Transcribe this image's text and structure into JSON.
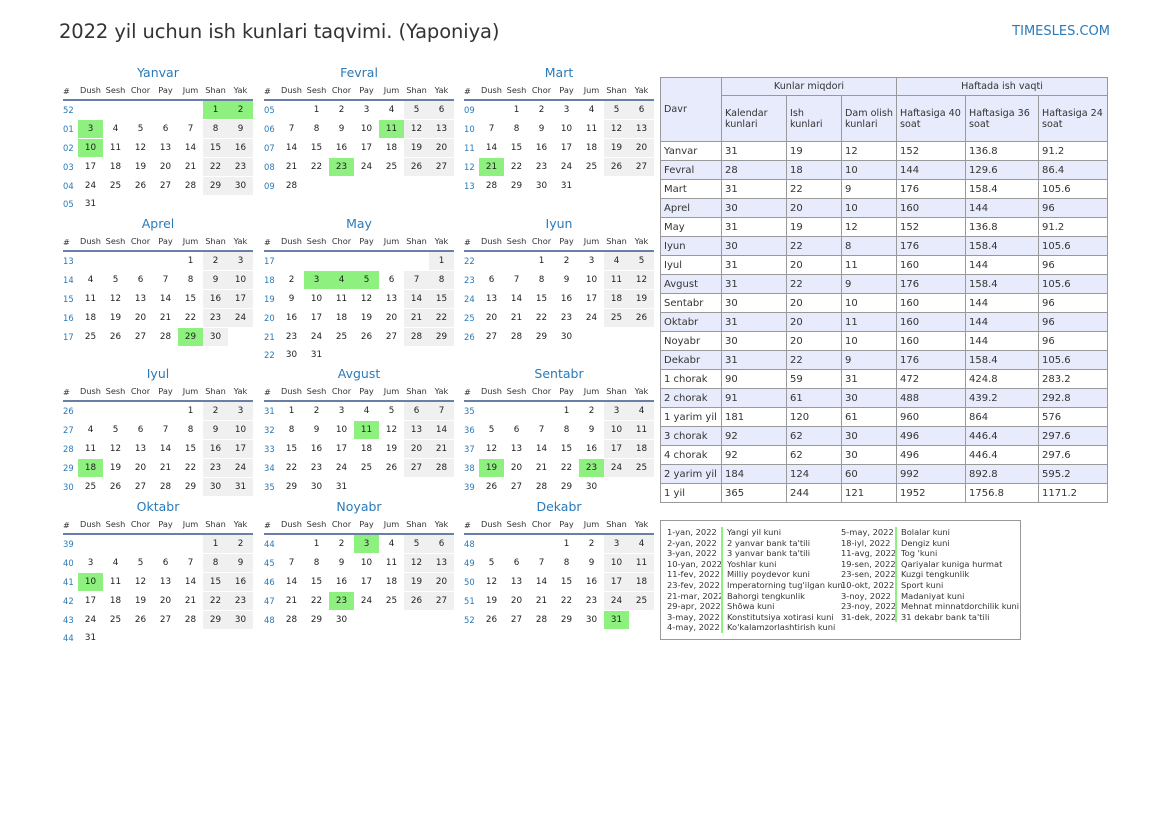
{
  "title": "2022 yil uchun ish kunlari taqvimi. (Yaponiya)",
  "brand": "TIMESLES.COM",
  "colors": {
    "accent": "#2a7ab8",
    "holiday": "#8ef07e",
    "weekend": "#f0f0f0",
    "table_header": "#e8ebfb"
  },
  "calendar": {
    "weekday_header": [
      "#",
      "Dush",
      "Sesh",
      "Chor",
      "Pay",
      "Jum",
      "Shan",
      "Yak"
    ],
    "months": [
      {
        "name": "Yanvar",
        "first_weekday": 5,
        "days": 31,
        "first_week": 52,
        "holidays": [
          1,
          2,
          3,
          10
        ]
      },
      {
        "name": "Fevral",
        "first_weekday": 1,
        "days": 28,
        "first_week": 5,
        "holidays": [
          11,
          23
        ]
      },
      {
        "name": "Mart",
        "first_weekday": 1,
        "days": 31,
        "first_week": 9,
        "holidays": [
          21
        ]
      },
      {
        "name": "Aprel",
        "first_weekday": 4,
        "days": 30,
        "first_week": 13,
        "holidays": [
          29
        ]
      },
      {
        "name": "May",
        "first_weekday": 6,
        "days": 31,
        "first_week": 17,
        "holidays": [
          3,
          4,
          5
        ]
      },
      {
        "name": "Iyun",
        "first_weekday": 2,
        "days": 30,
        "first_week": 22,
        "holidays": []
      },
      {
        "name": "Iyul",
        "first_weekday": 4,
        "days": 31,
        "first_week": 26,
        "holidays": [
          18
        ]
      },
      {
        "name": "Avgust",
        "first_weekday": 0,
        "days": 31,
        "first_week": 31,
        "holidays": [
          11
        ]
      },
      {
        "name": "Sentabr",
        "first_weekday": 3,
        "days": 30,
        "first_week": 35,
        "holidays": [
          19,
          23
        ]
      },
      {
        "name": "Oktabr",
        "first_weekday": 5,
        "days": 31,
        "first_week": 39,
        "holidays": [
          10
        ]
      },
      {
        "name": "Noyabr",
        "first_weekday": 1,
        "days": 30,
        "first_week": 44,
        "holidays": [
          3,
          23
        ]
      },
      {
        "name": "Dekabr",
        "first_weekday": 3,
        "days": 31,
        "first_week": 48,
        "holidays": [
          31
        ]
      }
    ]
  },
  "summary": {
    "group_headers": {
      "davr": "Davr",
      "kunlar": "Kunlar miqdori",
      "haftada": "Haftada ish vaqti"
    },
    "sub_headers": [
      "Kalendar kunlari",
      "Ish kunlari",
      "Dam olish kunlari",
      "Haftasiga 40 soat",
      "Haftasiga 36 soat",
      "Haftasiga 24 soat"
    ],
    "rows": [
      [
        "Yanvar",
        "31",
        "19",
        "12",
        "152",
        "136.8",
        "91.2"
      ],
      [
        "Fevral",
        "28",
        "18",
        "10",
        "144",
        "129.6",
        "86.4"
      ],
      [
        "Mart",
        "31",
        "22",
        "9",
        "176",
        "158.4",
        "105.6"
      ],
      [
        "Aprel",
        "30",
        "20",
        "10",
        "160",
        "144",
        "96"
      ],
      [
        "May",
        "31",
        "19",
        "12",
        "152",
        "136.8",
        "91.2"
      ],
      [
        "Iyun",
        "30",
        "22",
        "8",
        "176",
        "158.4",
        "105.6"
      ],
      [
        "Iyul",
        "31",
        "20",
        "11",
        "160",
        "144",
        "96"
      ],
      [
        "Avgust",
        "31",
        "22",
        "9",
        "176",
        "158.4",
        "105.6"
      ],
      [
        "Sentabr",
        "30",
        "20",
        "10",
        "160",
        "144",
        "96"
      ],
      [
        "Oktabr",
        "31",
        "20",
        "11",
        "160",
        "144",
        "96"
      ],
      [
        "Noyabr",
        "30",
        "20",
        "10",
        "160",
        "144",
        "96"
      ],
      [
        "Dekabr",
        "31",
        "22",
        "9",
        "176",
        "158.4",
        "105.6"
      ],
      [
        "1 chorak",
        "90",
        "59",
        "31",
        "472",
        "424.8",
        "283.2"
      ],
      [
        "2 chorak",
        "91",
        "61",
        "30",
        "488",
        "439.2",
        "292.8"
      ],
      [
        "1 yarim yil",
        "181",
        "120",
        "61",
        "960",
        "864",
        "576"
      ],
      [
        "3 chorak",
        "92",
        "62",
        "30",
        "496",
        "446.4",
        "297.6"
      ],
      [
        "4 chorak",
        "92",
        "62",
        "30",
        "496",
        "446.4",
        "297.6"
      ],
      [
        "2 yarim yil",
        "184",
        "124",
        "60",
        "992",
        "892.8",
        "595.2"
      ],
      [
        "1 yil",
        "365",
        "244",
        "121",
        "1952",
        "1756.8",
        "1171.2"
      ]
    ]
  },
  "holidays_left": [
    {
      "date": "1-yan, 2022",
      "name": "Yangi yil kuni"
    },
    {
      "date": "2-yan, 2022",
      "name": "2 yanvar bank ta'tili"
    },
    {
      "date": "3-yan, 2022",
      "name": "3 yanvar bank ta'tili"
    },
    {
      "date": "10-yan, 2022",
      "name": "Yoshlar kuni"
    },
    {
      "date": "11-fev, 2022",
      "name": "Milliy poydevor kuni"
    },
    {
      "date": "23-fev, 2022",
      "name": "Imperatorning tug'ilgan kuni"
    },
    {
      "date": "21-mar, 2022",
      "name": "Bahorgi tengkunlik"
    },
    {
      "date": "29-apr, 2022",
      "name": "Shōwa kuni"
    },
    {
      "date": "3-may, 2022",
      "name": "Konstitutsiya xotirasi kuni"
    },
    {
      "date": "4-may, 2022",
      "name": "Ko'kalamzorlashtirish kuni"
    }
  ],
  "holidays_right": [
    {
      "date": "5-may, 2022",
      "name": "Bolalar kuni"
    },
    {
      "date": "18-iyl, 2022",
      "name": "Dengiz kuni"
    },
    {
      "date": "11-avg, 2022",
      "name": "Tog 'kuni"
    },
    {
      "date": "19-sen, 2022",
      "name": "Qariyalar kuniga hurmat"
    },
    {
      "date": "23-sen, 2022",
      "name": "Kuzgi tengkunlik"
    },
    {
      "date": "10-okt, 2022",
      "name": "Sport kuni"
    },
    {
      "date": "3-noy, 2022",
      "name": "Madaniyat kuni"
    },
    {
      "date": "23-noy, 2022",
      "name": "Mehnat minnatdorchilik kuni"
    },
    {
      "date": "31-dek, 2022",
      "name": "31 dekabr bank ta'tili"
    }
  ]
}
